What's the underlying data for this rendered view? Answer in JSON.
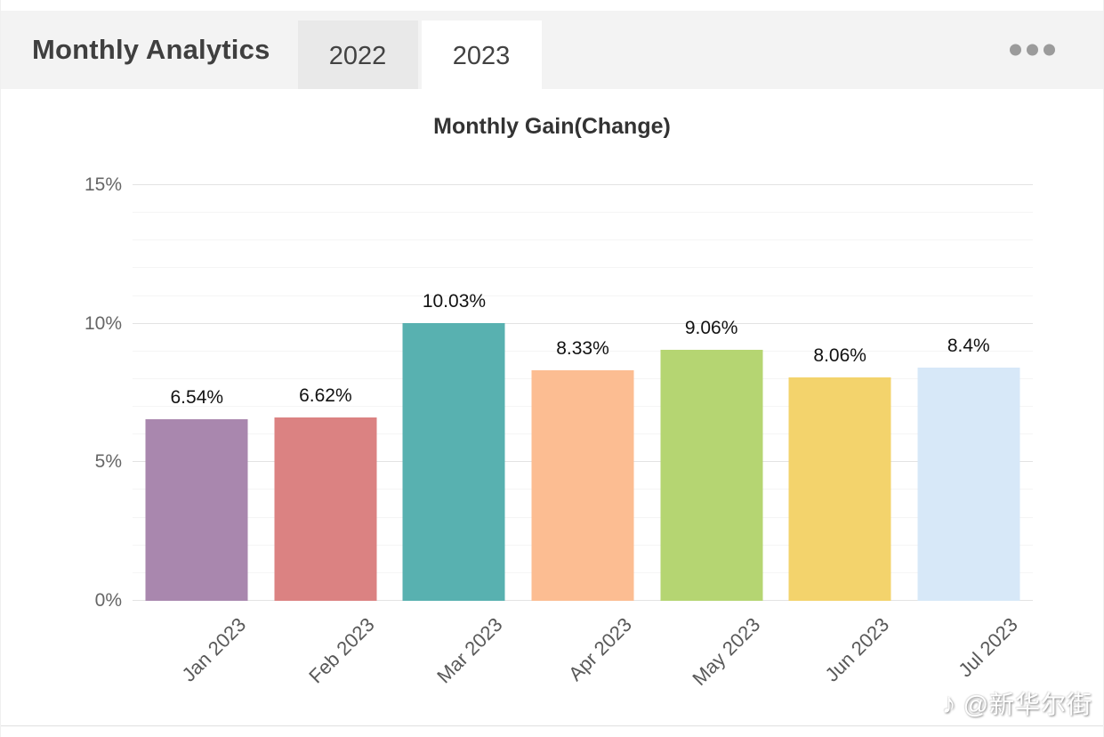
{
  "header": {
    "title": "Monthly Analytics",
    "tabs": [
      {
        "label": "2022",
        "active": false
      },
      {
        "label": "2023",
        "active": true
      }
    ],
    "menu_icon": "ellipsis-icon"
  },
  "chart_data": {
    "type": "bar",
    "title": "Monthly Gain(Change)",
    "categories": [
      "Jan 2023",
      "Feb 2023",
      "Mar 2023",
      "Apr 2023",
      "May 2023",
      "Jun 2023",
      "Jul 2023"
    ],
    "values": [
      6.54,
      6.62,
      10.03,
      8.33,
      9.06,
      8.06,
      8.4
    ],
    "value_labels": [
      "6.54%",
      "6.62%",
      "10.03%",
      "8.33%",
      "9.06%",
      "8.06%",
      "8.4%"
    ],
    "bar_colors": [
      "#a987ae",
      "#db8282",
      "#58b1b0",
      "#fcbd92",
      "#b5d572",
      "#f3d36c",
      "#d7e8f8"
    ],
    "xlabel": "",
    "ylabel": "",
    "ylim": [
      0,
      15
    ],
    "yticks": [
      0,
      5,
      10,
      15
    ],
    "ytick_labels": [
      "0%",
      "5%",
      "10%",
      "15%"
    ],
    "minor_grid_step": 1,
    "grid": true,
    "legend_position": "none",
    "xlabel_rotation_deg": -45
  },
  "watermark": {
    "icon": "douyin-icon",
    "icon_glyph": "♪",
    "text": "@新华尔街"
  },
  "colors": {
    "header_bg": "#f3f3f3",
    "inactive_tab_bg": "#e9e9e9",
    "active_tab_bg": "#ffffff",
    "title_text": "#3f3f3f",
    "axis_text": "#666666",
    "gridline_major": "#e3e3e3",
    "gridline_minor": "#f5f5f5"
  }
}
